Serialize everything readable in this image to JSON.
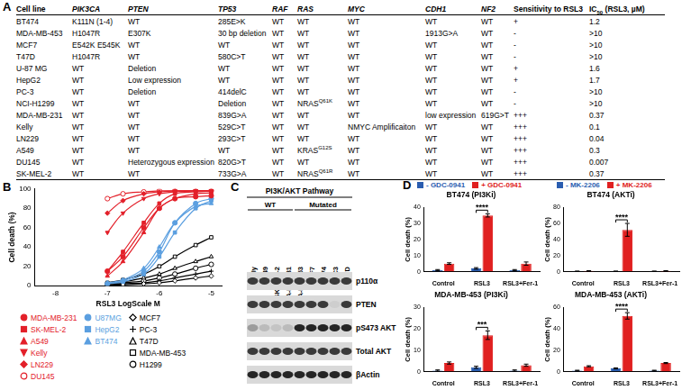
{
  "panel_labels": [
    "A",
    "B",
    "C",
    "D"
  ],
  "table": {
    "header": [
      "Cell line",
      "PIK3CA",
      "PTEN",
      "TP53",
      "RAF",
      "RAS",
      "MYC",
      "CDH1",
      "NF2",
      "Sensitivity to RSL3",
      [
        {
          "t": "IC"
        },
        {
          "t": "50",
          "sub": true
        },
        {
          "t": " (RSL3, µM)"
        }
      ]
    ],
    "rows": [
      [
        "BT474",
        "K111N (1-4)",
        "WT",
        "285E>K",
        "WT",
        "WT",
        "WT",
        "WT",
        "WT",
        "+",
        "1.2"
      ],
      [
        "MDA-MB-453",
        "H1047R",
        "E307K",
        "30 bp deletion",
        "WT",
        "WT",
        "WT",
        "1913G>A",
        "WT",
        "-",
        ">10"
      ],
      [
        "MCF7",
        "E542K E545K",
        "WT",
        "WT",
        "WT",
        "WT",
        "WT",
        "WT",
        "WT",
        "-",
        ">10"
      ],
      [
        "T47D",
        "H1047R",
        "WT",
        "580C>T",
        "WT",
        "WT",
        "WT",
        "WT",
        "WT",
        "-",
        ">10"
      ],
      [
        "U-87 MG",
        "WT",
        "Deletion",
        "WT",
        "WT",
        "WT",
        "WT",
        "WT",
        "WT",
        "+",
        "1.6"
      ],
      [
        "HepG2",
        "WT",
        "Low expression",
        "WT",
        "WT",
        "WT",
        "WT",
        "WT",
        "WT",
        "+",
        "1.7"
      ],
      [
        "PC-3",
        "WT",
        "Deletion",
        "414delC",
        "WT",
        "WT",
        "WT",
        "WT",
        "WT",
        "-",
        ">10"
      ],
      [
        "NCI-H1299",
        "WT",
        "WT",
        "Deletion",
        "WT",
        [
          {
            "t": "NRAS"
          },
          {
            "t": "Q61K",
            "sup": true
          }
        ],
        "WT",
        "WT",
        "WT",
        "-",
        ">10"
      ],
      [
        "MDA-MB-231",
        "WT",
        "WT",
        "839G>A",
        "WT",
        "WT",
        "WT",
        "low expression",
        "619G>T",
        "+++",
        "0.37"
      ],
      [
        "Kelly",
        "WT",
        "WT",
        "529C>T",
        "WT",
        "WT",
        "NMYC Amplificaiton",
        "WT",
        "WT",
        "+++",
        "0.1"
      ],
      [
        "LN229",
        "WT",
        "WT",
        "293C>T",
        "WT",
        "WT",
        "WT",
        "WT",
        "WT",
        "+++",
        "0.04"
      ],
      [
        "A549",
        "WT",
        "WT",
        "WT",
        "WT",
        [
          {
            "t": "KRAS"
          },
          {
            "t": "G12S",
            "sup": true
          }
        ],
        "WT",
        "WT",
        "WT",
        "+++",
        "0.3"
      ],
      [
        "DU145",
        "WT",
        "Heterozygous expression",
        "820G>T",
        "WT",
        "WT",
        "WT",
        "WT",
        "WT",
        "+++",
        "0.007"
      ],
      [
        "SK-MEL-2",
        "WT",
        "WT",
        "733G>A",
        "WT",
        [
          {
            "t": "NRAS"
          },
          {
            "t": "Q61R",
            "sup": true
          }
        ],
        "WT",
        "WT",
        "WT",
        "+++",
        "0.37"
      ]
    ]
  },
  "chart_data": [
    {
      "type": "line",
      "x_label": "RSL3 LogScale M",
      "y_label": "Cell death (%)",
      "x": [
        -7,
        -6.7,
        -6.3,
        -6,
        -5.7,
        -5.3,
        -5
      ],
      "xlim": [
        -8.4,
        -4.8
      ],
      "xticks": [
        -8,
        -7,
        -6,
        -5
      ],
      "ylim": [
        0,
        100
      ],
      "yticks": [
        0,
        20,
        40,
        60,
        80,
        100
      ],
      "grid": false,
      "legend": "bottom",
      "series": [
        {
          "name": "MDA-MB-231",
          "color": "#e3202a",
          "marker": "circle",
          "values": [
            15,
            30,
            60,
            80,
            90,
            92,
            93
          ]
        },
        {
          "name": "SK-MEL-2",
          "color": "#e3202a",
          "marker": "square",
          "values": [
            15,
            35,
            65,
            85,
            95,
            97,
            98
          ]
        },
        {
          "name": "A549",
          "color": "#e3202a",
          "marker": "triangle",
          "values": [
            10,
            25,
            55,
            80,
            90,
            95,
            96
          ]
        },
        {
          "name": "Kelly",
          "color": "#e3202a",
          "marker": "triangle_down",
          "values": [
            55,
            75,
            90,
            95,
            97,
            98,
            98
          ]
        },
        {
          "name": "LN229",
          "color": "#e3202a",
          "marker": "diamond",
          "values": [
            75,
            88,
            95,
            97,
            98,
            98,
            98
          ]
        },
        {
          "name": "DU145",
          "color": "#e3202a",
          "marker": "circle_open",
          "values": [
            90,
            95,
            97,
            98,
            98,
            98,
            98
          ]
        },
        {
          "name": "U87MG",
          "color": "#5b9fe0",
          "marker": "circle",
          "values": [
            2,
            5,
            15,
            35,
            65,
            85,
            90
          ]
        },
        {
          "name": "HepG2",
          "color": "#5b9fe0",
          "marker": "square",
          "values": [
            2,
            4,
            12,
            30,
            55,
            80,
            88
          ]
        },
        {
          "name": "BT474",
          "color": "#5b9fe0",
          "marker": "triangle",
          "values": [
            3,
            6,
            18,
            40,
            65,
            82,
            85
          ]
        },
        {
          "name": "MCF7",
          "color": "#000000",
          "marker": "diamond_open",
          "values": [
            0,
            1,
            2,
            3,
            5,
            8,
            10
          ]
        },
        {
          "name": "PC-3",
          "color": "#000000",
          "marker": "cross",
          "values": [
            1,
            2,
            3,
            5,
            8,
            12,
            15
          ]
        },
        {
          "name": "T47D",
          "color": "#000000",
          "marker": "triangle_open",
          "values": [
            2,
            4,
            8,
            12,
            18,
            25,
            30
          ]
        },
        {
          "name": "MDA-MB-453",
          "color": "#000000",
          "marker": "square_open",
          "values": [
            3,
            6,
            12,
            20,
            30,
            42,
            50
          ]
        },
        {
          "name": "H1299",
          "color": "#000000",
          "marker": "circle_open",
          "values": [
            2,
            3,
            5,
            8,
            12,
            18,
            22
          ]
        }
      ]
    },
    {
      "type": "bar",
      "title": "BT474 (PI3Ki)",
      "y_label": "Cell death (%)",
      "legend": "top",
      "grid": false,
      "categories": [
        "Control",
        "RSL3",
        "RSL3+Fer-1"
      ],
      "ylim": [
        0,
        40
      ],
      "yticks": [
        0,
        10,
        20,
        30,
        40
      ],
      "series": [
        {
          "name": "- GDC-0941",
          "color": "#2a5db0",
          "values": [
            1,
            2,
            1
          ],
          "errors": [
            0.3,
            0.5,
            0.3
          ]
        },
        {
          "name": "+ GDC-0941",
          "color": "#e02020",
          "values": [
            5,
            35,
            5
          ],
          "errors": [
            0.5,
            1,
            1
          ]
        }
      ],
      "annotations": [
        {
          "text": "****",
          "category": "RSL3"
        }
      ]
    },
    {
      "type": "bar",
      "title": "BT474 (AKTi)",
      "y_label": "Cell death (%)",
      "legend": "top",
      "grid": false,
      "categories": [
        "Control",
        "RSL3",
        "RSL3+Fer-1"
      ],
      "ylim": [
        0,
        80
      ],
      "yticks": [
        0,
        20,
        40,
        60,
        80
      ],
      "series": [
        {
          "name": "- MK-2206",
          "color": "#2a5db0",
          "values": [
            0.5,
            0.5,
            0.5
          ],
          "errors": [
            0.2,
            0.2,
            0.2
          ]
        },
        {
          "name": "+ MK-2206",
          "color": "#e02020",
          "values": [
            1,
            52,
            1
          ],
          "errors": [
            0.3,
            8,
            0.3
          ]
        }
      ],
      "annotations": [
        {
          "text": "****",
          "category": "RSL3"
        }
      ]
    },
    {
      "type": "bar",
      "title": "MDA-MB-453 (PI3Ki)",
      "y_label": "Cell death (%)",
      "grid": false,
      "categories": [
        "Control",
        "RSL3",
        "RSL3+Fer-1"
      ],
      "ylim": [
        0,
        30
      ],
      "yticks": [
        0,
        10,
        20,
        30
      ],
      "series": [
        {
          "name": "- GDC-0941",
          "color": "#2a5db0",
          "values": [
            0.5,
            2,
            0.5
          ],
          "errors": [
            0.3,
            0.5,
            0.3
          ]
        },
        {
          "name": "+ GDC-0941",
          "color": "#e02020",
          "values": [
            4,
            17,
            3
          ],
          "errors": [
            0.5,
            2,
            0.5
          ]
        }
      ],
      "annotations": [
        {
          "text": "***",
          "category": "RSL3"
        }
      ]
    },
    {
      "type": "bar",
      "title": "MDA-MB-453 (AKTi)",
      "y_label": "Cell death (%)",
      "grid": false,
      "categories": [
        "Control",
        "RSL3",
        "RSL3+Fer-1"
      ],
      "ylim": [
        0,
        60
      ],
      "yticks": [
        0,
        20,
        40,
        60
      ],
      "series": [
        {
          "name": "- MK-2206",
          "color": "#2a5db0",
          "values": [
            1,
            3,
            1
          ],
          "errors": [
            0.3,
            0.5,
            0.3
          ]
        },
        {
          "name": "+ MK-2206",
          "color": "#e02020",
          "values": [
            5,
            52,
            8
          ],
          "errors": [
            0.5,
            3,
            0.5
          ]
        }
      ],
      "annotations": [
        {
          "text": "****",
          "category": "RSL3"
        }
      ]
    }
  ],
  "blot": {
    "title": "PI3K/AKT Pathway",
    "groups": [
      {
        "label": "WT",
        "lanes": [
          "Kelly",
          "A549",
          "SK-MEL-2",
          "MDA-MB-231"
        ]
      },
      {
        "label": "Mutated",
        "lanes": [
          "MDA-MB-453",
          "MCF7",
          "BT474",
          "PC3",
          "T47D"
        ]
      }
    ],
    "rows": [
      {
        "label": "p110α",
        "intensity": [
          0.8,
          0.8,
          0.8,
          0.8,
          0.8,
          0.8,
          0.8,
          0.8,
          0.8
        ]
      },
      {
        "label": "PTEN",
        "intensity": [
          0.8,
          0.8,
          0.8,
          0.8,
          0.8,
          0.8,
          0.8,
          0.05,
          0.8
        ]
      },
      {
        "label": "pS473 AKT",
        "intensity": [
          0.3,
          0.15,
          0.1,
          0.15,
          0.9,
          0.9,
          0.9,
          0.9,
          0.9
        ]
      },
      {
        "label": "Total AKT",
        "intensity": [
          0.8,
          0.8,
          0.8,
          0.8,
          0.8,
          0.8,
          0.8,
          0.8,
          0.8
        ]
      },
      {
        "label": "βActin",
        "intensity": [
          0.9,
          0.9,
          0.9,
          0.9,
          0.9,
          0.9,
          0.9,
          0.9,
          0.9
        ]
      }
    ]
  }
}
